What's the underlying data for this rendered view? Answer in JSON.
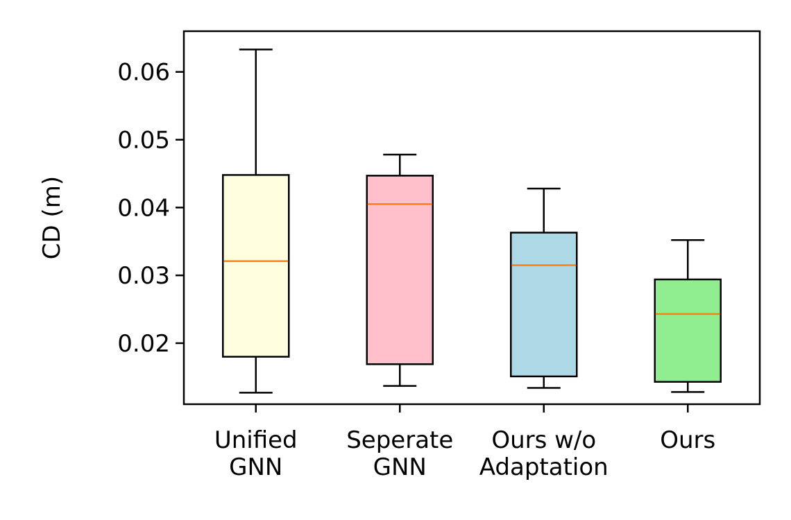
{
  "chart_data": {
    "type": "box",
    "ylabel": "CD (m)",
    "xlabel": "",
    "ylim": [
      0.011,
      0.066
    ],
    "yticks": [
      0.02,
      0.03,
      0.04,
      0.05,
      0.06
    ],
    "ytick_labels": [
      "0.02",
      "0.03",
      "0.04",
      "0.05",
      "0.06"
    ],
    "grid": false,
    "median_color": "#ff7f0e",
    "boxes": [
      {
        "category": [
          "Unified",
          "GNN"
        ],
        "whisker_low": 0.0127,
        "q1": 0.018,
        "median": 0.0321,
        "q3": 0.0448,
        "whisker_high": 0.0633,
        "color": "#ffffe0"
      },
      {
        "category": [
          "Seperate",
          "GNN"
        ],
        "whisker_low": 0.0137,
        "q1": 0.0169,
        "median": 0.0405,
        "q3": 0.0447,
        "whisker_high": 0.0478,
        "color": "#ffc0cb"
      },
      {
        "category": [
          "Ours w/o",
          "Adaptation"
        ],
        "whisker_low": 0.0134,
        "q1": 0.0151,
        "median": 0.0315,
        "q3": 0.0363,
        "whisker_high": 0.0428,
        "color": "#add8e6"
      },
      {
        "category": [
          "Ours"
        ],
        "whisker_low": 0.0128,
        "q1": 0.0143,
        "median": 0.0243,
        "q3": 0.0294,
        "whisker_high": 0.0352,
        "color": "#90ee90"
      }
    ]
  }
}
